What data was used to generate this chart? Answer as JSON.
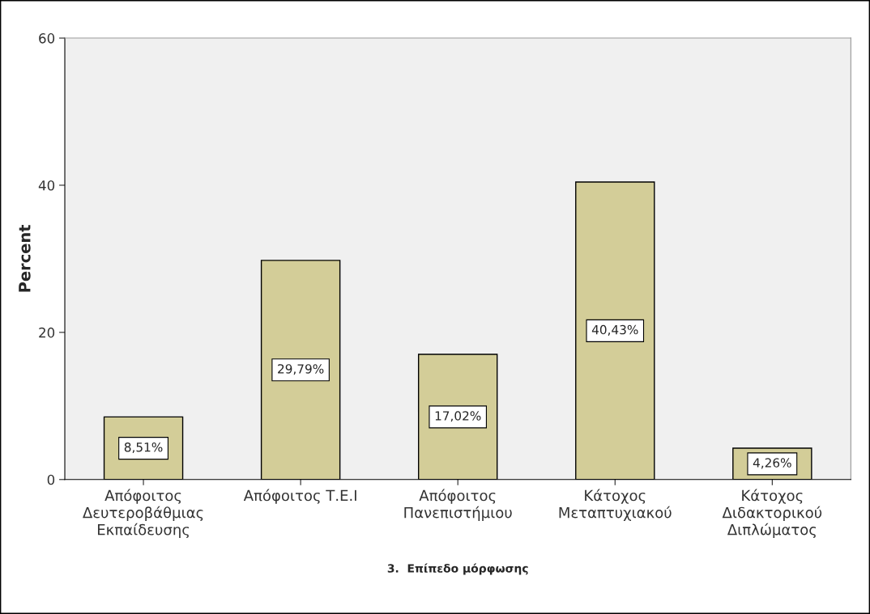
{
  "chart_data": {
    "type": "bar",
    "categories": [
      "Απόφοιτος\nΔευτεροβάθμιας\nΕκπαίδευσης",
      "Απόφοιτος Τ.Ε.Ι",
      "Απόφοιτος\nΠανεπιστήμιου",
      "Κάτοχος\nΜεταπτυχιακού",
      "Κάτοχος\nΔιδακτορικού\nΔιπλώματος"
    ],
    "values": [
      8.51,
      29.79,
      17.02,
      40.43,
      4.26
    ],
    "value_labels": [
      "8,51%",
      "29,79%",
      "17,02%",
      "40,43%",
      "4,26%"
    ],
    "color": "#d3cd98",
    "xlabel": "3.  Επίπεδο μόρφωσης",
    "ylabel": "Percent",
    "ylim": [
      0,
      60
    ],
    "yticks": [
      0,
      20,
      40,
      60
    ],
    "grid": false
  }
}
